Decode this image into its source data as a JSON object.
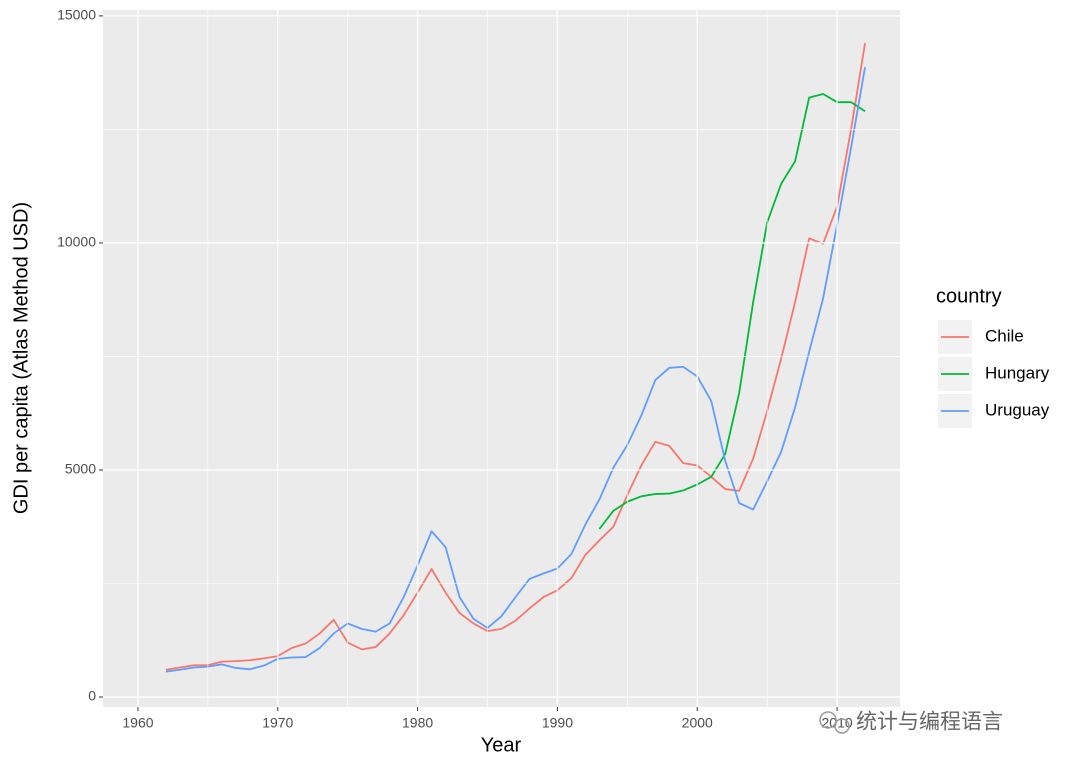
{
  "chart_data": {
    "type": "line",
    "x_label": "Year",
    "y_label": "GDI per capita (Atlas Method USD)",
    "legend_title": "country",
    "legend_position": "right",
    "watermark": "统计与编程语言",
    "xlim": [
      1957.5,
      2014.5
    ],
    "ylim": [
      -220,
      15130
    ],
    "xticks": [
      1960,
      1970,
      1980,
      1990,
      2000,
      2010
    ],
    "yticks": [
      0,
      5000,
      10000,
      15000
    ],
    "x_minor_grid": [
      1965,
      1975,
      1985,
      1995,
      2005
    ],
    "y_minor_grid": [
      2500,
      7500,
      12500
    ],
    "grid": true,
    "series": [
      {
        "name": "Chile",
        "color": "#F8766D",
        "x": [
          1962,
          1963,
          1964,
          1965,
          1966,
          1967,
          1968,
          1969,
          1970,
          1971,
          1972,
          1973,
          1974,
          1975,
          1976,
          1977,
          1978,
          1979,
          1980,
          1981,
          1982,
          1983,
          1984,
          1985,
          1986,
          1987,
          1988,
          1989,
          1990,
          1991,
          1992,
          1993,
          1994,
          1995,
          1996,
          1997,
          1998,
          1999,
          2000,
          2001,
          2002,
          2003,
          2004,
          2005,
          2006,
          2007,
          2008,
          2009,
          2010,
          2011,
          2012
        ],
        "values": [
          600,
          650,
          700,
          700,
          780,
          790,
          810,
          850,
          900,
          1080,
          1180,
          1400,
          1700,
          1200,
          1050,
          1100,
          1400,
          1800,
          2300,
          2820,
          2300,
          1850,
          1620,
          1450,
          1500,
          1680,
          1950,
          2200,
          2350,
          2620,
          3130,
          3450,
          3750,
          4450,
          5100,
          5620,
          5530,
          5150,
          5100,
          4850,
          4580,
          4540,
          5250,
          6300,
          7450,
          8700,
          10100,
          9980,
          10800,
          12500,
          14400
        ]
      },
      {
        "name": "Hungary",
        "color": "#00BA38",
        "x": [
          1993,
          1994,
          1995,
          1996,
          1997,
          1998,
          1999,
          2000,
          2001,
          2002,
          2003,
          2004,
          2005,
          2006,
          2007,
          2008,
          2009,
          2010,
          2011,
          2012
        ],
        "values": [
          3700,
          4100,
          4300,
          4420,
          4470,
          4480,
          4550,
          4680,
          4850,
          5350,
          6700,
          8700,
          10450,
          11300,
          11800,
          13200,
          13280,
          13100,
          13100,
          12900
        ]
      },
      {
        "name": "Uruguay",
        "color": "#619CFF",
        "x": [
          1962,
          1963,
          1964,
          1965,
          1966,
          1967,
          1968,
          1969,
          1970,
          1971,
          1972,
          1973,
          1974,
          1975,
          1976,
          1977,
          1978,
          1979,
          1980,
          1981,
          1982,
          1983,
          1984,
          1985,
          1986,
          1987,
          1988,
          1989,
          1990,
          1991,
          1992,
          1993,
          1994,
          1995,
          1996,
          1997,
          1998,
          1999,
          2000,
          2001,
          2002,
          2003,
          2004,
          2005,
          2006,
          2007,
          2008,
          2009,
          2010,
          2011,
          2012
        ],
        "values": [
          560,
          600,
          650,
          670,
          720,
          640,
          610,
          690,
          840,
          870,
          880,
          1080,
          1400,
          1620,
          1500,
          1440,
          1620,
          2200,
          2900,
          3650,
          3300,
          2200,
          1720,
          1520,
          1780,
          2200,
          2600,
          2720,
          2830,
          3150,
          3800,
          4350,
          5050,
          5550,
          6200,
          6980,
          7250,
          7270,
          7060,
          6520,
          5200,
          4270,
          4130,
          4750,
          5400,
          6380,
          7600,
          8780,
          10400,
          12100,
          13870
        ]
      }
    ]
  }
}
